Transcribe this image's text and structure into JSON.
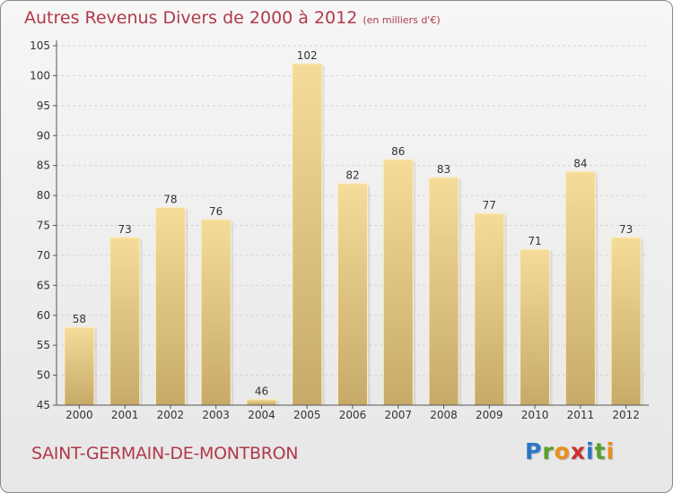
{
  "header": {
    "title": "Autres Revenus Divers de 2000 à 2012",
    "unit": "(en milliers d'€)"
  },
  "footer": {
    "commune": "SAINT-GERMAIN-DE-MONTBRON"
  },
  "logo": {
    "letters": [
      "P",
      "r",
      "o",
      "x",
      "i",
      "t",
      "i"
    ],
    "colors": [
      "#2a76c6",
      "#5aa02c",
      "#e8901a",
      "#d02e2e",
      "#2a76c6",
      "#5aa02c",
      "#e8901a"
    ]
  },
  "colors": {
    "bar_top": "#f5dc98",
    "bar_bottom": "#c7aa68",
    "axis": "#555555",
    "grid": "#d4d4d4",
    "text": "#333333"
  },
  "chart_data": {
    "type": "bar",
    "categories": [
      "2000",
      "2001",
      "2002",
      "2003",
      "2004",
      "2005",
      "2006",
      "2007",
      "2008",
      "2009",
      "2010",
      "2011",
      "2012"
    ],
    "values": [
      58,
      73,
      78,
      76,
      46,
      102,
      82,
      86,
      83,
      77,
      71,
      84,
      73
    ],
    "ylim": [
      45,
      105
    ],
    "yticks": [
      45,
      50,
      55,
      60,
      65,
      70,
      75,
      80,
      85,
      90,
      95,
      100,
      105
    ],
    "grid": true
  }
}
